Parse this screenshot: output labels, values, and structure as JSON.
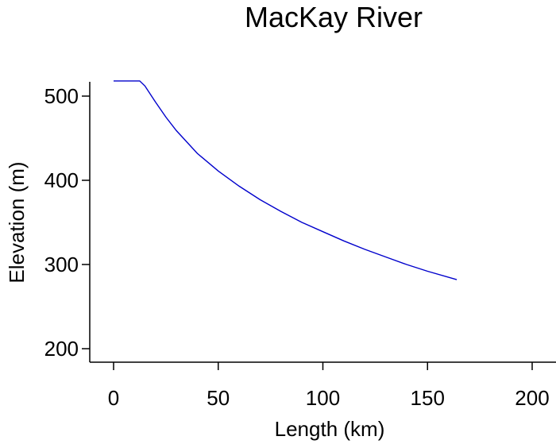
{
  "chart_data": {
    "type": "line",
    "title": "MacKay River",
    "xlabel": "Length (km)",
    "ylabel": "Elevation (m)",
    "xlim": [
      -5,
      205
    ],
    "ylim": [
      190,
      520
    ],
    "xticks": [
      0,
      50,
      100,
      150,
      200
    ],
    "yticks": [
      200,
      300,
      400,
      500
    ],
    "grid": false,
    "series": [
      {
        "color": "#0000cc",
        "x": [
          0,
          5,
          10,
          12.5,
          15,
          20,
          25,
          30,
          40,
          50,
          60,
          70,
          80,
          90,
          100,
          110,
          120,
          130,
          140,
          150,
          164
        ],
        "y": [
          518,
          518,
          518,
          518,
          512,
          493,
          475,
          459,
          432,
          411,
          393,
          377,
          363,
          350,
          339,
          328,
          318,
          309,
          300,
          292,
          282
        ]
      }
    ]
  }
}
